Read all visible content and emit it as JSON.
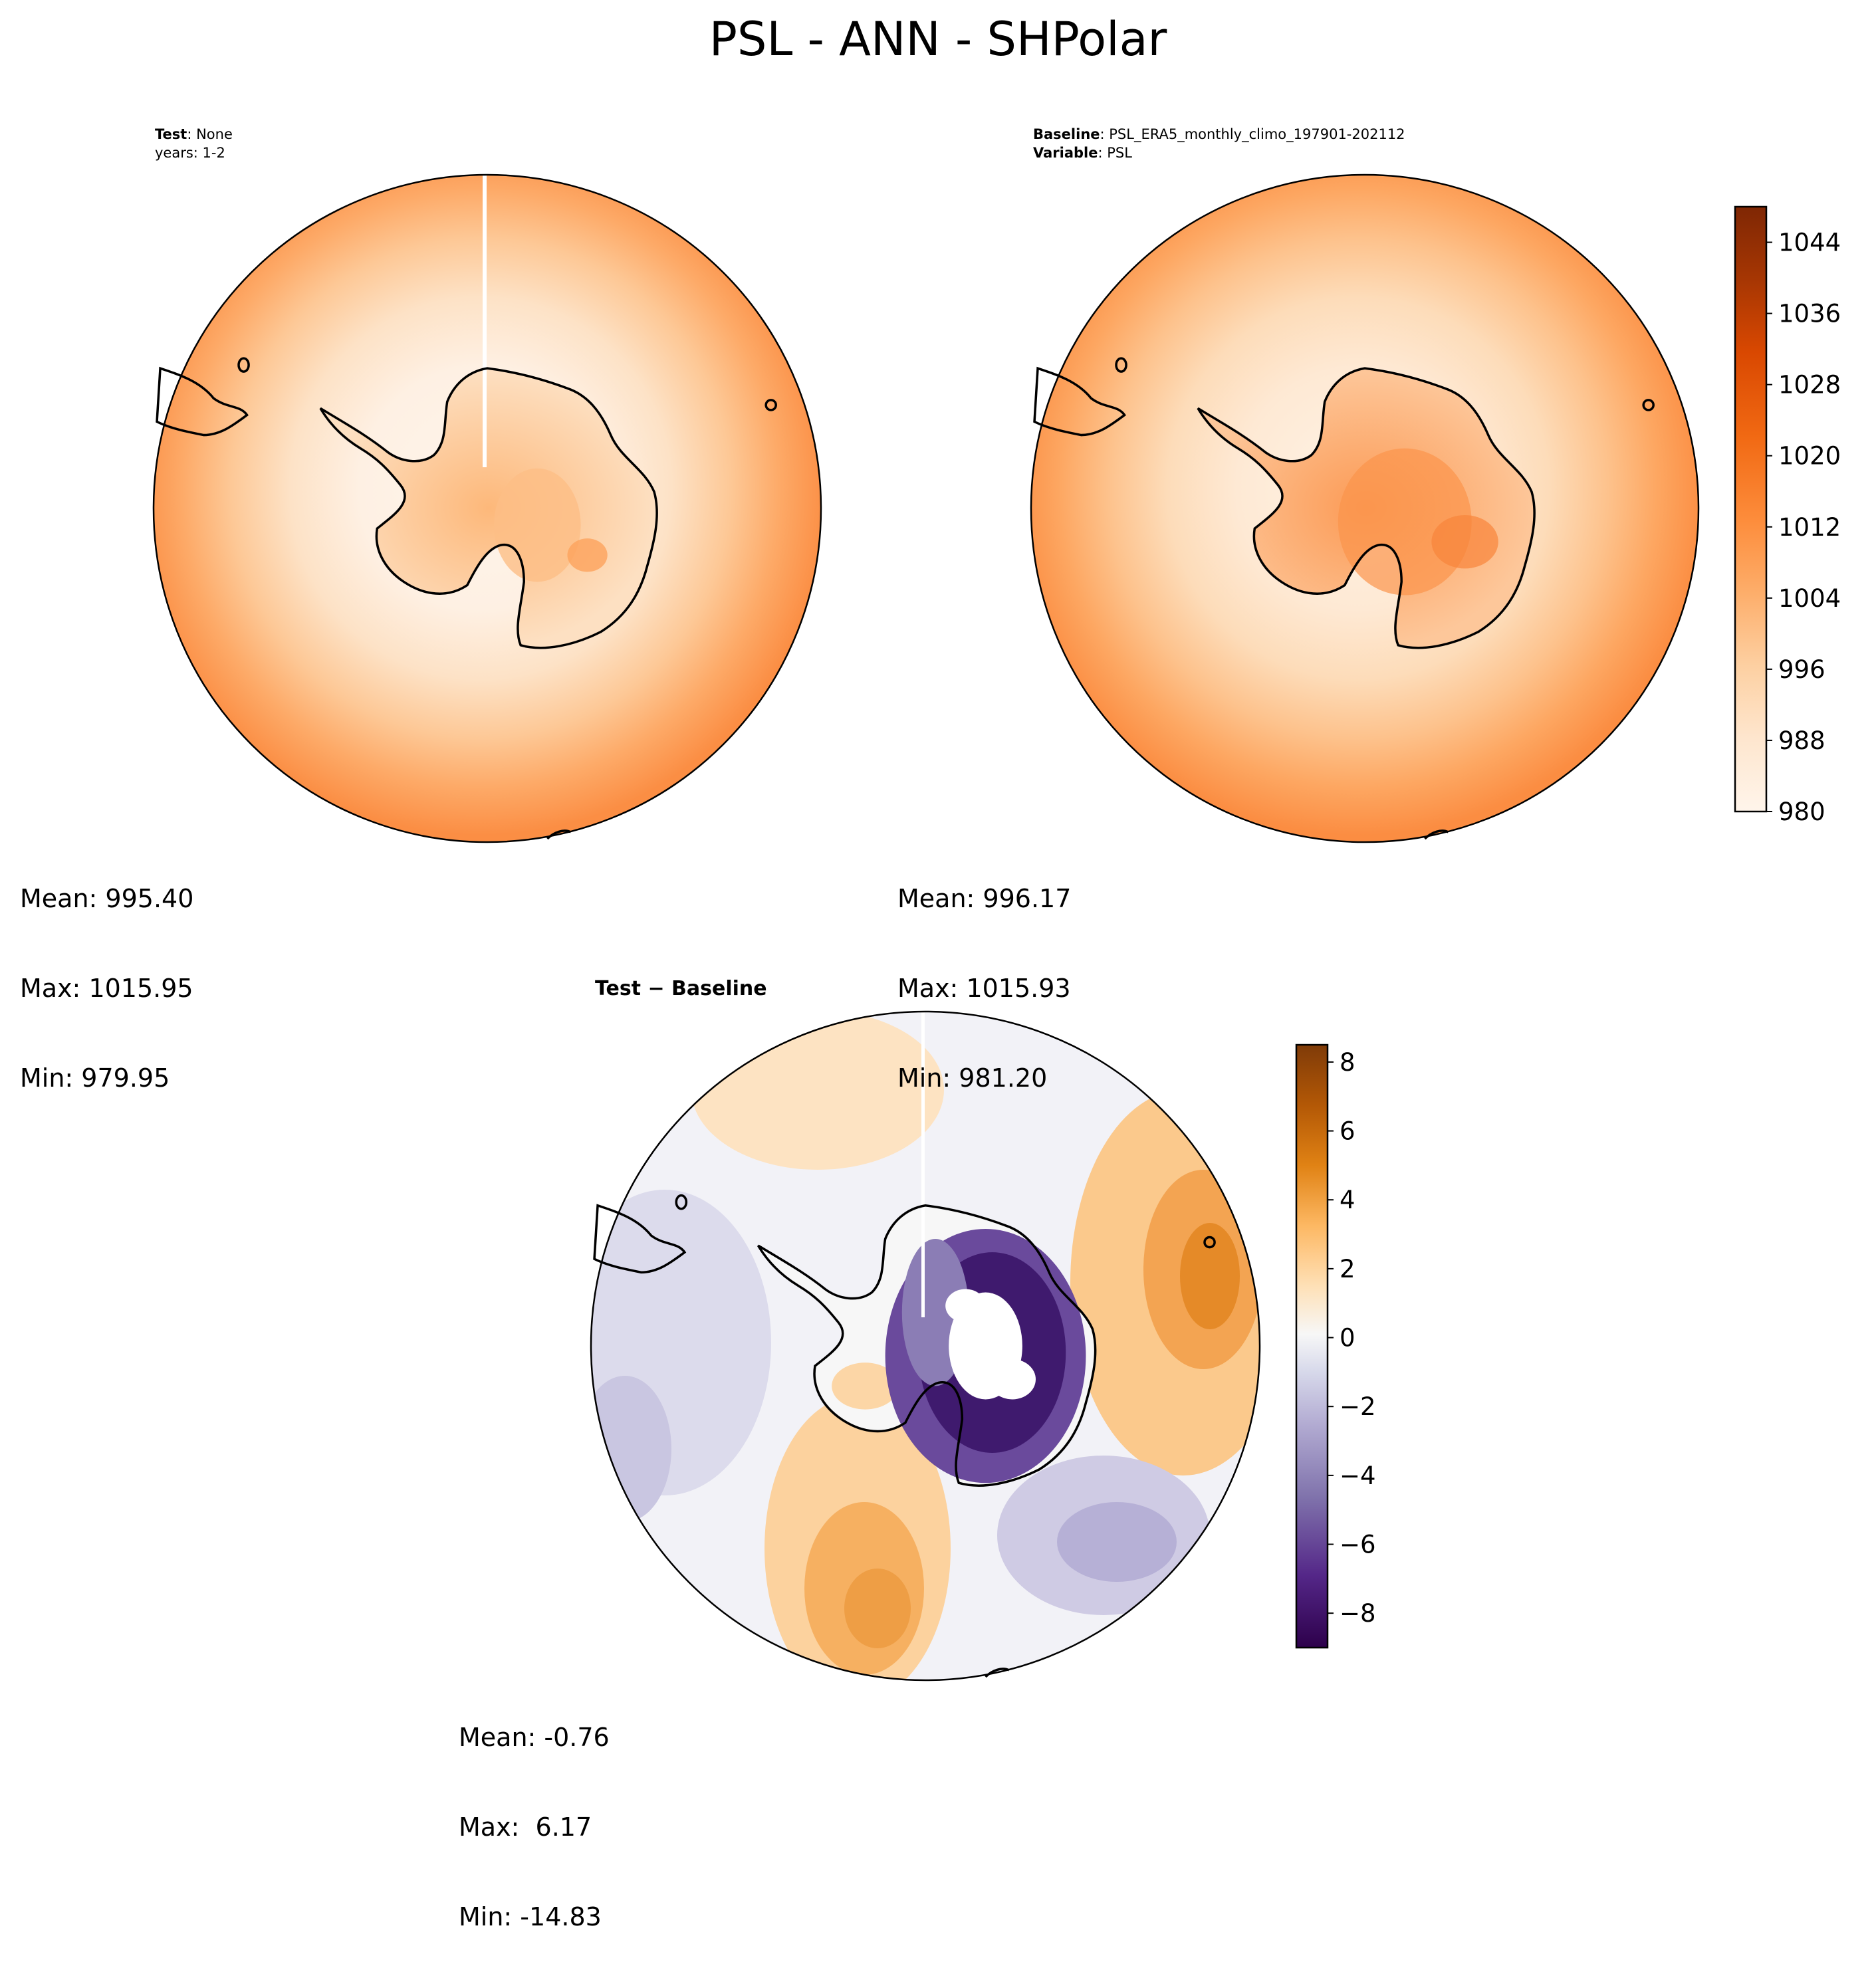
{
  "title": "PSL - ANN - SHPolar",
  "test_panel": {
    "label_key": "Test",
    "label_value": ": None",
    "years": "years: 1-2",
    "stats": {
      "mean": "Mean: 995.40",
      "max": "Max: 1015.95",
      "min": "Min: 979.95"
    }
  },
  "baseline_panel": {
    "label_key": "Baseline",
    "label_value": ": PSL_ERA5_monthly_climo_197901-202112",
    "variable_key": "Variable",
    "variable_value": ": PSL",
    "stats": {
      "mean": "Mean: 996.17",
      "max": "Max: 1015.93",
      "min": "Min: 981.20"
    }
  },
  "diff_panel": {
    "title": "Test − Baseline",
    "stats": {
      "mean": "Mean: -0.76",
      "max": "Max:  6.17",
      "min": "Min: -14.83"
    }
  },
  "colorbars": {
    "psl": {
      "min": 980,
      "max": 1048,
      "step": 4,
      "tick_values": [
        980,
        988,
        996,
        1004,
        1012,
        1020,
        1028,
        1036,
        1044
      ],
      "tick_labels": [
        "980",
        "988",
        "996",
        "1004",
        "1012",
        "1020",
        "1028",
        "1036",
        "1044"
      ],
      "colormap": "Oranges",
      "colors": [
        "#fff5eb",
        "#fee6ce",
        "#fdd0a2",
        "#fdae6b",
        "#fd8d3c",
        "#f16913",
        "#d94801",
        "#a63603",
        "#7f2704"
      ]
    },
    "diff": {
      "min": -9,
      "max": 8.5,
      "step": 0.5,
      "tick_values": [
        -8,
        -6,
        -4,
        -2,
        0,
        2,
        4,
        6,
        8
      ],
      "tick_labels": [
        "−8",
        "−6",
        "−4",
        "−2",
        "0",
        "2",
        "4",
        "6",
        "8"
      ],
      "colormap": "PuOr_r",
      "colors": [
        "#2d004b",
        "#542788",
        "#8073ac",
        "#b2abd2",
        "#d8daeb",
        "#f7f7f7",
        "#fee0b6",
        "#fdb863",
        "#e08214",
        "#b35806",
        "#7f3b08"
      ]
    }
  }
}
